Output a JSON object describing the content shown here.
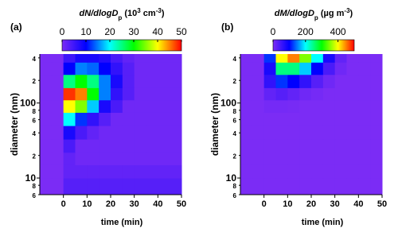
{
  "chart_data": [
    {
      "type": "heatmap",
      "panel_label": "(a)",
      "colorbar_label": [
        {
          "text": "dN/dlog",
          "style": "i"
        },
        {
          "text": "D",
          "style": "i"
        },
        {
          "text": "p",
          "style": "sub"
        },
        {
          "text": " (10",
          "style": ""
        },
        {
          "text": "3",
          "style": "sup"
        },
        {
          "text": " cm",
          "style": ""
        },
        {
          "text": "-3",
          "style": "sup"
        },
        {
          "text": ")",
          "style": ""
        }
      ],
      "xlabel": "time (min)",
      "ylabel": "diameter (nm)",
      "x_edges": [
        -10,
        -5,
        0,
        5,
        10,
        15,
        20,
        25,
        30,
        35,
        40,
        45,
        50
      ],
      "y_edges": [
        6,
        10,
        15,
        22,
        33,
        50,
        75,
        110,
        160,
        240,
        350,
        450
      ],
      "z": [
        [
          0,
          0,
          3,
          3,
          3,
          3,
          3,
          3,
          3,
          3,
          3,
          3
        ],
        [
          0,
          0,
          2,
          2,
          2,
          2,
          2,
          2,
          2,
          2,
          2,
          2
        ],
        [
          0,
          0,
          2,
          1,
          1,
          1,
          1,
          1,
          1,
          1,
          1,
          1
        ],
        [
          0,
          0,
          4,
          1,
          1,
          1,
          1,
          1,
          1,
          1,
          1,
          1
        ],
        [
          0,
          0,
          8,
          4,
          2,
          1,
          1,
          1,
          1,
          1,
          1,
          1
        ],
        [
          0,
          0,
          20,
          12,
          6,
          3,
          1,
          1,
          1,
          1,
          1,
          1
        ],
        [
          0,
          0,
          40,
          35,
          18,
          8,
          4,
          1,
          1,
          1,
          1,
          1
        ],
        [
          0,
          0,
          48,
          45,
          30,
          15,
          6,
          3,
          1,
          1,
          1,
          1
        ],
        [
          0,
          0,
          25,
          30,
          25,
          15,
          8,
          3,
          1,
          1,
          1,
          1
        ],
        [
          0,
          0,
          10,
          15,
          14,
          10,
          6,
          3,
          1,
          1,
          1,
          1
        ],
        [
          0,
          0,
          5,
          8,
          8,
          7,
          4,
          2,
          1,
          1,
          1,
          1
        ]
      ],
      "zlim": [
        0,
        50
      ],
      "zticks": [
        0,
        10,
        20,
        30,
        40,
        50
      ],
      "xlim": [
        -10,
        50
      ],
      "xticks": [
        0,
        10,
        20,
        30,
        40,
        50
      ],
      "ylim": [
        6,
        450
      ],
      "log_y": true,
      "yticks": [
        6,
        8,
        10,
        {
          "value": 20,
          "label": "2"
        },
        {
          "value": 40,
          "label": "4"
        },
        {
          "value": 60,
          "label": "6"
        },
        {
          "value": 80,
          "label": "8"
        },
        100,
        {
          "value": 200,
          "label": "2"
        },
        {
          "value": 400,
          "label": "4"
        }
      ],
      "colorscale": [
        "#7b2cf5",
        "#0000ff",
        "#00ffff",
        "#00ff00",
        "#ffff00",
        "#ff0000"
      ]
    },
    {
      "type": "heatmap",
      "panel_label": "(b)",
      "colorbar_label": [
        {
          "text": "dM/dlog",
          "style": "i"
        },
        {
          "text": "D",
          "style": "i"
        },
        {
          "text": "p",
          "style": "sub"
        },
        {
          "text": " (µg m",
          "style": ""
        },
        {
          "text": "-3",
          "style": "sup"
        },
        {
          "text": ")",
          "style": ""
        }
      ],
      "xlabel": "time (min)",
      "ylabel": "diameter (nm)",
      "x_edges": [
        -10,
        -5,
        0,
        5,
        10,
        15,
        20,
        25,
        30,
        35,
        40,
        45,
        50
      ],
      "y_edges": [
        6,
        10,
        15,
        22,
        33,
        50,
        75,
        110,
        160,
        240,
        350,
        450
      ],
      "z": [
        [
          0,
          0,
          0,
          0,
          0,
          0,
          0,
          0,
          0,
          0,
          0,
          0
        ],
        [
          0,
          0,
          0,
          0,
          0,
          0,
          0,
          0,
          0,
          0,
          0,
          0
        ],
        [
          0,
          0,
          0,
          0,
          0,
          0,
          0,
          0,
          0,
          0,
          0,
          0
        ],
        [
          0,
          0,
          0,
          0,
          0,
          0,
          0,
          0,
          0,
          0,
          0,
          0
        ],
        [
          0,
          0,
          0,
          0,
          0,
          0,
          0,
          0,
          0,
          0,
          0,
          0
        ],
        [
          0,
          0,
          0,
          0,
          0,
          0,
          0,
          0,
          0,
          0,
          0,
          0
        ],
        [
          0,
          0,
          5,
          5,
          3,
          0,
          0,
          0,
          0,
          0,
          0,
          0
        ],
        [
          0,
          0,
          20,
          30,
          20,
          10,
          5,
          0,
          0,
          0,
          0,
          0
        ],
        [
          0,
          0,
          60,
          120,
          100,
          60,
          30,
          10,
          0,
          0,
          0,
          0
        ],
        [
          0,
          0,
          80,
          250,
          250,
          180,
          100,
          40,
          10,
          0,
          0,
          0
        ],
        [
          0,
          0,
          120,
          400,
          450,
          350,
          200,
          80,
          20,
          0,
          0,
          0
        ]
      ],
      "zlim": [
        0,
        500
      ],
      "zticks": [
        0,
        200,
        400
      ],
      "xlim": [
        -10,
        50
      ],
      "xticks": [
        0,
        10,
        20,
        30,
        40,
        50
      ],
      "ylim": [
        6,
        450
      ],
      "log_y": true,
      "yticks": [
        6,
        8,
        10,
        {
          "value": 20,
          "label": "2"
        },
        {
          "value": 40,
          "label": "4"
        },
        {
          "value": 60,
          "label": "6"
        },
        {
          "value": 80,
          "label": "8"
        },
        100,
        {
          "value": 200,
          "label": "2"
        },
        {
          "value": 400,
          "label": "4"
        }
      ],
      "colorscale": [
        "#7b2cf5",
        "#0000ff",
        "#00ffff",
        "#00ff00",
        "#ffff00",
        "#ff0000"
      ]
    }
  ]
}
